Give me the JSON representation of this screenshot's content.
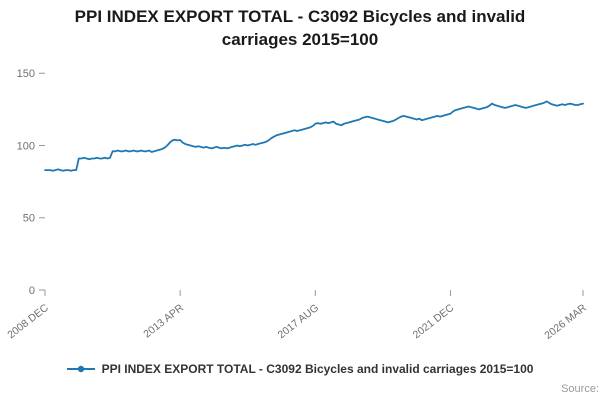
{
  "page": {
    "title": "PPI INDEX EXPORT TOTAL - C3092 Bicycles and invalid carriages 2015=100",
    "source_label": "Source:"
  },
  "legend": {
    "label": "PPI INDEX EXPORT TOTAL - C3092 Bicycles and invalid carriages 2015=100"
  },
  "colors": {
    "line": "#1f77b4",
    "axis_text": "#707070",
    "tick": "#999999",
    "title_text": "#1a1a1a",
    "legend_text": "#333333",
    "source_text": "#9b9b9b"
  },
  "chart_data": {
    "type": "line",
    "title": "PPI INDEX EXPORT TOTAL - C3092 Bicycles and invalid carriages 2015=100",
    "xlabel": "",
    "ylabel": "",
    "x_unit": "month",
    "x_range": [
      "2008 DEC",
      "2026 MAR"
    ],
    "x_tick_labels": [
      "2008 DEC",
      "2013 APR",
      "2017 AUG",
      "2021 DEC",
      "2026 MAR"
    ],
    "x_tick_indices": [
      0,
      52,
      104,
      156,
      207
    ],
    "y_ticks": [
      0,
      50,
      100,
      150
    ],
    "ylim": [
      0,
      155
    ],
    "grid": false,
    "legend_position": "bottom",
    "series": [
      {
        "name": "PPI INDEX EXPORT TOTAL - C3092 Bicycles and invalid carriages 2015=100",
        "values": [
          83,
          83,
          83,
          82.5,
          83,
          83.5,
          83,
          82.5,
          83,
          83,
          82.5,
          83,
          83,
          91,
          91,
          91.5,
          91,
          90.5,
          91,
          91,
          91.5,
          91,
          91,
          91.5,
          91,
          91.5,
          96,
          96,
          96.5,
          96,
          96,
          96.5,
          96,
          96,
          96.5,
          96,
          96,
          96.5,
          96,
          96,
          96.5,
          95.5,
          96,
          96.5,
          97,
          97.5,
          98.5,
          100,
          102,
          103.5,
          104,
          103.5,
          103.8,
          102,
          101,
          100.5,
          100,
          99.5,
          99,
          99.5,
          99,
          98.5,
          99,
          98.5,
          98,
          98.5,
          99,
          98.5,
          98,
          98.5,
          98,
          98.5,
          99,
          99.5,
          100,
          99.5,
          100,
          100.5,
          100,
          100.5,
          101,
          100.5,
          101,
          101.5,
          102,
          102.5,
          103.5,
          105,
          106,
          107,
          107.5,
          108,
          108.5,
          109,
          109.5,
          110,
          110.5,
          110,
          110.5,
          111,
          111.5,
          112,
          112.5,
          113.5,
          115,
          115.5,
          115,
          115.5,
          116,
          115.5,
          116,
          116.5,
          115,
          114.5,
          114,
          115,
          115.5,
          116,
          116.5,
          117,
          117.5,
          118,
          119,
          119.5,
          120,
          119.5,
          119,
          118.5,
          118,
          117.5,
          117,
          116.5,
          116,
          116.5,
          117,
          118,
          119,
          120,
          120.5,
          120,
          119.5,
          119,
          118.5,
          118,
          118.5,
          117.5,
          118,
          118.5,
          119,
          119.5,
          120,
          120.5,
          120,
          120.5,
          121,
          121.5,
          122,
          123.5,
          124.5,
          125,
          125.5,
          126,
          126.5,
          127,
          126.5,
          126,
          125.5,
          125,
          125.5,
          126,
          126.5,
          127.5,
          129,
          128,
          127.5,
          127,
          126.5,
          126,
          126.5,
          127,
          127.5,
          128,
          127.5,
          127,
          126.5,
          126,
          126.5,
          127,
          127.5,
          128,
          128.5,
          129,
          129.5,
          130.5,
          129.5,
          128.5,
          128,
          127.5,
          128,
          128.5,
          128,
          128.5,
          129,
          128.5,
          128,
          128,
          128.5,
          129
        ]
      }
    ]
  }
}
